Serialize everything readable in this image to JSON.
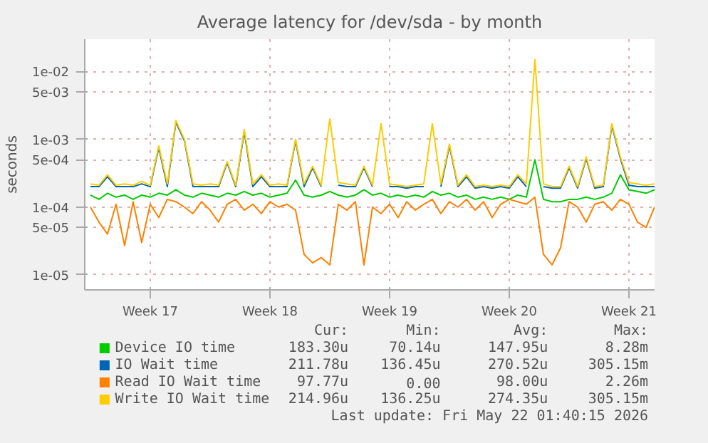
{
  "chart_data": {
    "type": "line",
    "title": "Average latency for /dev/sda - by month",
    "ylabel": "seconds",
    "log": "y",
    "grid": true,
    "legend": "bottom",
    "categories": [
      null,
      null,
      null,
      null,
      null,
      null,
      null,
      "Week 17",
      null,
      null,
      null,
      null,
      null,
      null,
      null,
      null,
      null,
      null,
      null,
      null,
      null,
      "Week 18",
      null,
      null,
      null,
      null,
      null,
      null,
      null,
      null,
      null,
      null,
      null,
      null,
      null,
      "Week 19",
      null,
      null,
      null,
      null,
      null,
      null,
      null,
      null,
      null,
      null,
      null,
      null,
      null,
      "Week 20",
      null,
      null,
      null,
      null,
      null,
      null,
      null,
      null,
      null,
      null,
      null,
      null,
      null,
      "Week 21",
      null,
      null,
      null
    ],
    "ylim": [
      6e-06,
      0.03
    ],
    "yticks": [
      {
        "value": 1e-05,
        "label": "1e-05"
      },
      {
        "value": 5e-05,
        "label": "5e-05"
      },
      {
        "value": 0.0001,
        "label": "1e-04"
      },
      {
        "value": 0.0005,
        "label": "5e-04"
      },
      {
        "value": 0.001,
        "label": "1e-03"
      },
      {
        "value": 0.005,
        "label": "5e-03"
      },
      {
        "value": 0.01,
        "label": "1e-02"
      }
    ],
    "series": [
      {
        "name": "Device IO time",
        "color": "#00cc00",
        "values": [
          0.00015,
          0.00013,
          0.00016,
          0.00014,
          0.00015,
          0.00013,
          0.00015,
          0.00014,
          0.00016,
          0.00015,
          0.00018,
          0.00015,
          0.00014,
          0.00016,
          0.00015,
          0.00014,
          0.00016,
          0.00015,
          0.00017,
          0.00015,
          0.00016,
          0.00014,
          0.00015,
          0.00016,
          0.00025,
          0.00015,
          0.00014,
          0.00015,
          0.00017,
          0.00015,
          0.00014,
          0.00015,
          0.00018,
          0.00015,
          0.00016,
          0.00014,
          0.00015,
          0.00014,
          0.00015,
          0.00014,
          0.00017,
          0.00015,
          0.00016,
          0.00014,
          0.00015,
          0.00013,
          0.00014,
          0.00013,
          0.00014,
          0.00013,
          0.00015,
          0.00014,
          0.0005,
          0.00013,
          0.00012,
          0.00012,
          0.00013,
          0.00013,
          0.00014,
          0.00013,
          0.00014,
          0.00016,
          0.0003,
          0.00018,
          0.00017,
          0.00016,
          0.00018
        ]
      },
      {
        "name": "IO Wait time",
        "color": "#0066b3",
        "values": [
          0.0002,
          0.0002,
          0.00028,
          0.0002,
          0.0002,
          0.0002,
          0.00022,
          0.0002,
          0.00075,
          0.0002,
          0.0018,
          0.00095,
          0.0002,
          0.0002,
          0.0002,
          0.0002,
          0.00045,
          0.0002,
          0.0013,
          0.0002,
          0.00028,
          0.0002,
          0.0002,
          0.0002,
          0.00095,
          0.0002,
          0.00038,
          0.0002,
          null,
          0.00021,
          0.0002,
          0.0002,
          0.00038,
          0.0002,
          null,
          0.0002,
          0.0002,
          0.00019,
          0.0002,
          0.0002,
          null,
          0.0002,
          0.0008,
          0.0002,
          0.00028,
          0.00019,
          0.0002,
          0.00019,
          0.0002,
          0.00019,
          0.00028,
          0.0002,
          null,
          0.0002,
          0.00019,
          0.00019,
          0.00038,
          0.00019,
          0.00052,
          0.00019,
          0.0002,
          0.0016,
          0.00052,
          0.00021,
          0.0002,
          0.0002,
          0.0002
        ]
      },
      {
        "name": "Read IO Wait time",
        "color": "#ff8000",
        "values": [
          0.0001,
          6e-05,
          4e-05,
          0.00011,
          2.7e-05,
          0.00012,
          3e-05,
          0.00011,
          7e-05,
          0.00013,
          0.00012,
          0.0001,
          8e-05,
          0.00012,
          9e-05,
          6e-05,
          0.00011,
          0.00013,
          9e-05,
          0.00011,
          8e-05,
          0.00012,
          0.0001,
          0.00011,
          9e-05,
          2e-05,
          1.5e-05,
          1.8e-05,
          1.4e-05,
          0.00011,
          9e-05,
          0.00012,
          1.4e-05,
          0.0001,
          8e-05,
          0.00011,
          7e-05,
          0.00012,
          9e-05,
          0.00011,
          0.00013,
          8e-05,
          0.00012,
          0.0001,
          0.00013,
          9e-05,
          0.00012,
          7e-05,
          0.00011,
          0.00013,
          0.00012,
          0.00011,
          0.00014,
          2e-05,
          1.4e-05,
          2.5e-05,
          0.00012,
          0.0001,
          6e-05,
          0.00011,
          0.00012,
          9e-05,
          0.00013,
          0.00011,
          6e-05,
          5e-05,
          0.0001
        ]
      },
      {
        "name": "Write IO Wait time",
        "color": "#ffcc00",
        "values": [
          0.00022,
          0.00021,
          0.0003,
          0.00021,
          0.00022,
          0.00021,
          0.00024,
          0.00021,
          0.0008,
          0.00022,
          0.0019,
          0.001,
          0.00022,
          0.00021,
          0.00022,
          0.00021,
          0.00047,
          0.00021,
          0.0014,
          0.00022,
          0.0003,
          0.00021,
          0.00022,
          0.00021,
          0.001,
          0.00022,
          0.0004,
          0.00021,
          0.002,
          0.00023,
          0.00022,
          0.00021,
          0.0004,
          0.00021,
          0.0017,
          0.00022,
          0.00021,
          0.0002,
          0.00021,
          0.00022,
          0.0017,
          0.00022,
          0.00085,
          0.00021,
          0.0003,
          0.0002,
          0.00021,
          0.0002,
          0.00021,
          0.0002,
          0.0003,
          0.00022,
          0.015,
          0.00022,
          0.0002,
          0.0002,
          0.0004,
          0.0002,
          0.00055,
          0.0002,
          0.00021,
          0.0017,
          0.00055,
          0.00023,
          0.00022,
          0.00021,
          0.00022
        ]
      }
    ],
    "annotations": [
      "Cur:",
      "Min:",
      "Avg:",
      "Max:",
      "183.30u",
      "70.14u",
      "147.95u",
      "8.28m",
      "211.78u",
      "136.45u",
      "270.52u",
      "305.15m",
      "97.77u",
      "0.00",
      "98.00u",
      "2.26m",
      "214.96u",
      "136.25u",
      "274.35u",
      "305.15m",
      "Last update: Fri May 22 01:40:15 2026"
    ]
  }
}
